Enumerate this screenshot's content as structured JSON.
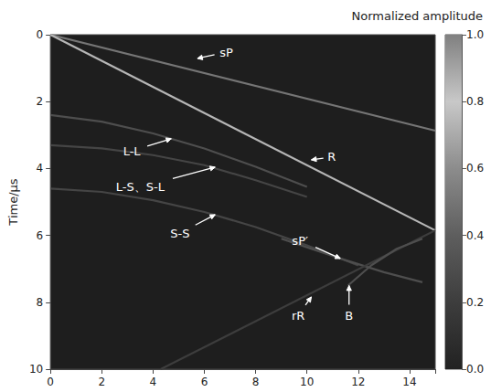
{
  "chart_data": {
    "type": "line",
    "ylabel": "Time/μs",
    "xlim": [
      0,
      15
    ],
    "xticks": [
      0,
      2,
      4,
      6,
      8,
      10,
      12,
      14
    ],
    "ylim": [
      0,
      10
    ],
    "yticks": [
      0,
      2,
      4,
      6,
      8,
      10
    ],
    "colorbar": {
      "title": "Normalized amplitude",
      "range": [
        0,
        1
      ],
      "ticks": [
        {
          "value": 0,
          "label": "0.0"
        },
        0.2,
        0.4,
        0.6,
        0.8,
        {
          "value": 1,
          "label": "1.0"
        }
      ]
    },
    "series": [
      {
        "values": [
          [
            0,
            0
          ],
          [
            15,
            2.87
          ]
        ],
        "amplitude": 0.5
      },
      {
        "values": [
          [
            0,
            0
          ],
          [
            15,
            5.85
          ]
        ],
        "amplitude": 0.85
      },
      {
        "values": [
          [
            0,
            2.4
          ],
          [
            2,
            2.6
          ],
          [
            4,
            2.95
          ],
          [
            6,
            3.4
          ],
          [
            8,
            3.95
          ],
          [
            10,
            4.55
          ]
        ],
        "amplitude": 0.3
      },
      {
        "values": [
          [
            0,
            3.3
          ],
          [
            2,
            3.4
          ],
          [
            4,
            3.6
          ],
          [
            6,
            3.9
          ],
          [
            8,
            4.35
          ],
          [
            10,
            4.85
          ]
        ],
        "amplitude": 0.25
      },
      {
        "values": [
          [
            0,
            4.6
          ],
          [
            2,
            4.7
          ],
          [
            4,
            4.95
          ],
          [
            6,
            5.3
          ],
          [
            8,
            5.75
          ],
          [
            10,
            6.3
          ],
          [
            12,
            6.9
          ]
        ],
        "amplitude": 0.25
      },
      {
        "values": [
          [
            9,
            6.1
          ],
          [
            11.3,
            6.69
          ],
          [
            13,
            7.1
          ],
          [
            14.5,
            7.4
          ]
        ],
        "amplitude": 0.3
      },
      {
        "values": [
          [
            15,
            5.85
          ],
          [
            4.3,
            10
          ]
        ],
        "amplitude": 0.2
      },
      {
        "values": [
          [
            11.6,
            7.5
          ],
          [
            12.5,
            6.9
          ],
          [
            13.5,
            6.4
          ],
          [
            14.5,
            6.1
          ]
        ],
        "amplitude": 0.3
      }
    ],
    "annotations": [
      {
        "text": "sP",
        "x": 6.86,
        "y": 0.52,
        "arrow_x": 5.73,
        "arrow_y": 0.71
      },
      {
        "text": "L-L",
        "x": 3.17,
        "y": 3.47,
        "arrow_x": 4.71,
        "arrow_y": 3.11
      },
      {
        "text": "L-S、S-L",
        "x": 3.5,
        "y": 4.56,
        "arrow_x": 6.42,
        "arrow_y": 3.96
      },
      {
        "text": "S-S",
        "x": 5.05,
        "y": 5.93,
        "arrow_x": 6.42,
        "arrow_y": 5.38
      },
      {
        "text": "R",
        "x": 10.96,
        "y": 3.66,
        "arrow_x": 10.17,
        "arrow_y": 3.74
      },
      {
        "text": "sP′",
        "x": 9.73,
        "y": 6.15,
        "arrow_x": 11.3,
        "arrow_y": 6.69
      },
      {
        "text": "rR",
        "x": 9.66,
        "y": 8.39,
        "arrow_x": 10.17,
        "arrow_y": 7.84
      },
      {
        "text": "B",
        "x": 11.64,
        "y": 8.39,
        "arrow_x": 11.64,
        "arrow_y": 7.5
      }
    ]
  }
}
